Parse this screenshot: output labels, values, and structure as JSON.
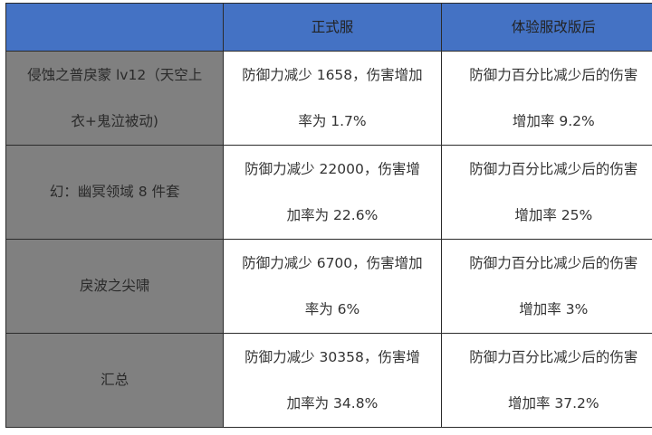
{
  "colors": {
    "header": "#4472c4",
    "first_column": "#808080"
  },
  "header": [
    "",
    "正式服",
    "体验服改版后"
  ],
  "rows": [
    {
      "item": [
        "侵蚀之普戾蒙 lv12（天空上",
        "衣+鬼泣被动)"
      ],
      "live": [
        "防御力减少 1658，伤害增加",
        "率为 1.7%"
      ],
      "test": [
        "防御力百分比减少后的伤害",
        "增加率 9.2%"
      ]
    },
    {
      "item": [
        "幻：幽冥领域 8 件套"
      ],
      "live": [
        "防御力减少 22000，伤害增",
        "加率为 22.6%"
      ],
      "test": [
        "防御力百分比减少后的伤害",
        "增加率 25%"
      ]
    },
    {
      "item": [
        "戾波之尖啸"
      ],
      "live": [
        "防御力减少 6700，伤害增加",
        "率为 6%"
      ],
      "test": [
        "防御力百分比减少后的伤害",
        "增加率 3%"
      ]
    },
    {
      "item": [
        "汇总"
      ],
      "live": [
        "防御力减少 30358，伤害增",
        "加率为 34.8%"
      ],
      "test": [
        "防御力百分比减少后的伤害",
        "增加率 37.2%"
      ]
    }
  ]
}
